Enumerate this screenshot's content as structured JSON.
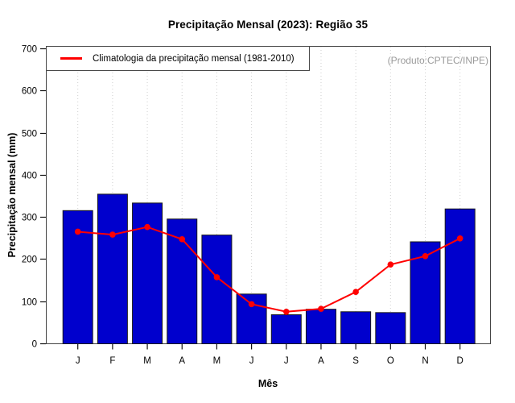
{
  "chart_data": {
    "type": "bar",
    "title": "Precipitação Mensal (2023): Região 35",
    "xlabel": "Mês",
    "ylabel": "Precipitação mensal (mm)",
    "annotation": "(Produto:CPTEC/INPE)",
    "categories": [
      "J",
      "F",
      "M",
      "A",
      "M",
      "J",
      "J",
      "A",
      "S",
      "O",
      "N",
      "D"
    ],
    "series": [
      {
        "name": "Precipitação mensal (2023)",
        "type": "bar",
        "color": "#0000cd",
        "border_color": "#1a1a1a",
        "values": [
          315,
          354,
          333,
          295,
          257,
          117,
          68,
          81,
          75,
          73,
          241,
          319
        ]
      },
      {
        "name": "Climatologia da precipitação mensal (1981-2010)",
        "type": "line",
        "color": "#ff0000",
        "marker": "filled-circle",
        "values": [
          265,
          258,
          276,
          247,
          157,
          93,
          75,
          82,
          122,
          187,
          207,
          249
        ]
      }
    ],
    "ylim": [
      0,
      700
    ],
    "y_ticks": [
      0,
      100,
      200,
      300,
      400,
      500,
      600,
      700
    ],
    "grid": "vertical-dotted",
    "grid_color": "#cfcfcf",
    "legend_position": "top-left",
    "axis_color": "#111111",
    "box_color": "#444444"
  }
}
